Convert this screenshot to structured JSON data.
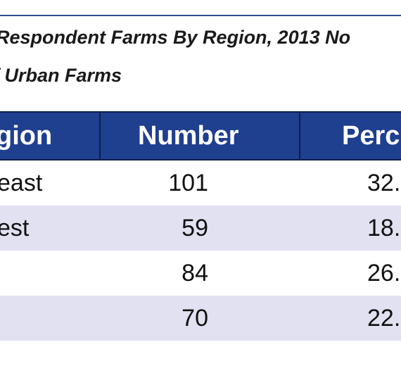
{
  "caption": {
    "line1": "Respondent Farms By Region, 2013 No",
    "line2": "f Urban Farms"
  },
  "table": {
    "headers": {
      "region": "gion",
      "number": "Number",
      "percent": "Perc"
    },
    "rows": [
      {
        "region": "east",
        "number": "101",
        "percent": "32."
      },
      {
        "region": "est",
        "number": "59",
        "percent": "18."
      },
      {
        "region": "",
        "number": "84",
        "percent": "26."
      },
      {
        "region": "",
        "number": "70",
        "percent": "22."
      }
    ]
  },
  "colors": {
    "header_bg": "#1f3f8f",
    "header_text": "#ffffff",
    "row_shade": "#e1e1f1",
    "rule": "#2a4b8d"
  }
}
